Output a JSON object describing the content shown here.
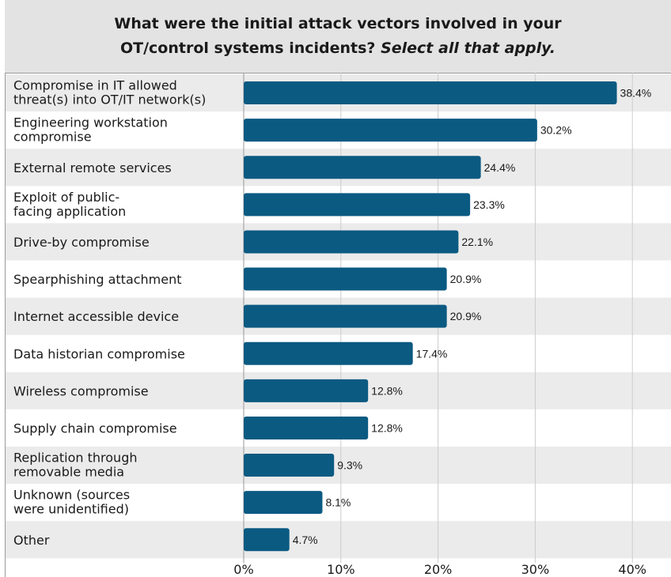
{
  "chart_data": {
    "type": "bar",
    "orientation": "horizontal",
    "title_line1": "What were the initial attack vectors involved in your",
    "title_line2": "OT/control systems incidents?",
    "title_emphasis": "Select all that apply.",
    "categories": [
      "Compromise in IT allowed threat(s) into OT/IT network(s)",
      "Engineering workstation compromise",
      "External remote services",
      "Exploit of public-facing application",
      "Drive-by compromise",
      "Spearphishing attachment",
      "Internet accessible device",
      "Data historian compromise",
      "Wireless compromise",
      "Supply chain compromise",
      "Replication through removable media",
      "Unknown (sources were unidentified)",
      "Other"
    ],
    "category_lines": [
      [
        "Compromise in IT allowed",
        "threat(s) into OT/IT network(s)"
      ],
      [
        "Engineering workstation",
        "compromise"
      ],
      [
        "External remote services"
      ],
      [
        "Exploit of public-",
        "facing application"
      ],
      [
        "Drive-by compromise"
      ],
      [
        "Spearphishing attachment"
      ],
      [
        "Internet accessible device"
      ],
      [
        "Data historian compromise"
      ],
      [
        "Wireless compromise"
      ],
      [
        "Supply chain compromise"
      ],
      [
        "Replication through",
        "removable media"
      ],
      [
        "Unknown (sources",
        "were unidentified)"
      ],
      [
        "Other"
      ]
    ],
    "values": [
      38.4,
      30.2,
      24.4,
      23.3,
      22.1,
      20.9,
      20.9,
      17.4,
      12.8,
      12.8,
      9.3,
      8.1,
      4.7
    ],
    "value_labels": [
      "38.4%",
      "30.2%",
      "24.4%",
      "23.3%",
      "22.1%",
      "20.9%",
      "20.9%",
      "17.4%",
      "12.8%",
      "12.8%",
      "9.3%",
      "8.1%",
      "4.7%"
    ],
    "x_ticks": [
      "0%",
      "10%",
      "20%",
      "30%",
      "40%"
    ],
    "xlim": [
      0,
      40
    ],
    "grid": true,
    "colors": {
      "bar": "#0b5a82",
      "row_band": "#ebebeb",
      "grid": "#cccccc",
      "header_bg": "#e3e3e3"
    }
  }
}
